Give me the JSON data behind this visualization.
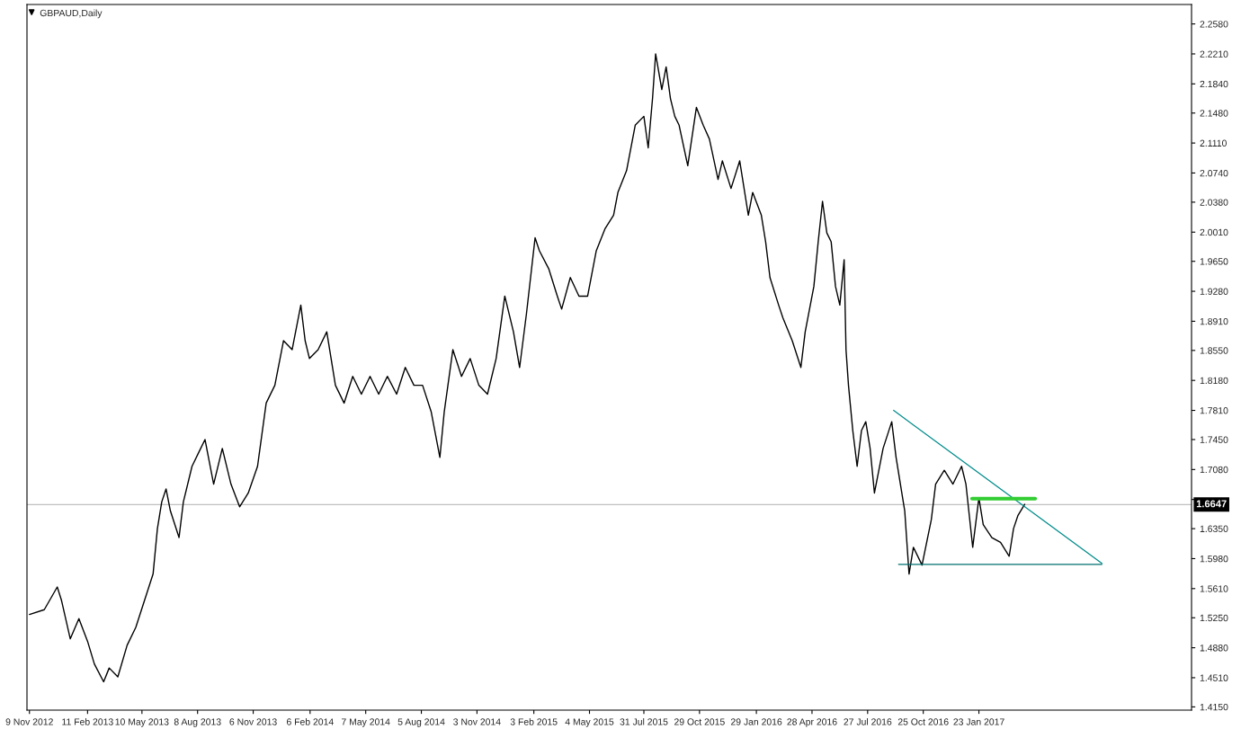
{
  "chart_data": {
    "type": "line",
    "title": "GBPAUD,Daily",
    "xlim": [
      "2012-11-05",
      "2018-01-02"
    ],
    "xticks": [
      {
        "value": "2012-11-09",
        "label": "9 Nov 2012"
      },
      {
        "value": "2013-02-11",
        "label": "11 Feb 2013"
      },
      {
        "value": "2013-05-10",
        "label": "10 May 2013"
      },
      {
        "value": "2013-08-08",
        "label": "8 Aug 2013"
      },
      {
        "value": "2013-11-06",
        "label": "6 Nov 2013"
      },
      {
        "value": "2014-02-06",
        "label": "6 Feb 2014"
      },
      {
        "value": "2014-05-07",
        "label": "7 May 2014"
      },
      {
        "value": "2014-08-05",
        "label": "5 Aug 2014"
      },
      {
        "value": "2014-11-03",
        "label": "3 Nov 2014"
      },
      {
        "value": "2015-02-03",
        "label": "3 Feb 2015"
      },
      {
        "value": "2015-05-04",
        "label": "4 May 2015"
      },
      {
        "value": "2015-07-31",
        "label": "31 Jul 2015"
      },
      {
        "value": "2015-10-29",
        "label": "29 Oct 2015"
      },
      {
        "value": "2016-01-29",
        "label": "29 Jan 2016"
      },
      {
        "value": "2016-04-28",
        "label": "28 Apr 2016"
      },
      {
        "value": "2016-07-27",
        "label": "27 Jul 2016"
      },
      {
        "value": "2016-10-25",
        "label": "25 Oct 2016"
      },
      {
        "value": "2017-01-23",
        "label": "23 Jan 2017"
      }
    ],
    "ylim": [
      1.411,
      2.282
    ],
    "yticks": [
      {
        "value": 1.415,
        "label": "1.4150"
      },
      {
        "value": 1.451,
        "label": "1.4510"
      },
      {
        "value": 1.488,
        "label": "1.4880"
      },
      {
        "value": 1.525,
        "label": "1.5250"
      },
      {
        "value": 1.561,
        "label": "1.5610"
      },
      {
        "value": 1.598,
        "label": "1.5980"
      },
      {
        "value": 1.635,
        "label": "1.6350"
      },
      {
        "value": 1.671,
        "label": null
      },
      {
        "value": 1.708,
        "label": "1.7080"
      },
      {
        "value": 1.745,
        "label": "1.7450"
      },
      {
        "value": 1.781,
        "label": "1.7810"
      },
      {
        "value": 1.818,
        "label": "1.8180"
      },
      {
        "value": 1.855,
        "label": "1.8550"
      },
      {
        "value": 1.891,
        "label": "1.8910"
      },
      {
        "value": 1.928,
        "label": "1.9280"
      },
      {
        "value": 1.965,
        "label": "1.9650"
      },
      {
        "value": 2.001,
        "label": "2.0010"
      },
      {
        "value": 2.038,
        "label": "2.0380"
      },
      {
        "value": 2.074,
        "label": "2.0740"
      },
      {
        "value": 2.111,
        "label": "2.1110"
      },
      {
        "value": 2.148,
        "label": "2.1480"
      },
      {
        "value": 2.184,
        "label": "2.1840"
      },
      {
        "value": 2.221,
        "label": "2.2210"
      },
      {
        "value": 2.258,
        "label": "2.2580"
      }
    ],
    "grid": false,
    "marker": "none",
    "line_style": "solid",
    "ref_lines": [
      {
        "axis": "y",
        "value": 1.6647,
        "label": "1.6647",
        "color": "#c0c0c0"
      }
    ],
    "series": [
      {
        "color": "#000000",
        "x": [
          "2012-11-09",
          "2012-12-03",
          "2012-12-24",
          "2012-12-31",
          "2013-01-14",
          "2013-01-28",
          "2013-02-11",
          "2013-02-22",
          "2013-03-09",
          "2013-03-18",
          "2013-04-01",
          "2013-04-16",
          "2013-04-30",
          "2013-05-14",
          "2013-05-28",
          "2013-06-04",
          "2013-06-11",
          "2013-06-18",
          "2013-06-25",
          "2013-07-09",
          "2013-07-16",
          "2013-07-30",
          "2013-08-13",
          "2013-08-20",
          "2013-09-03",
          "2013-09-17",
          "2013-10-01",
          "2013-10-15",
          "2013-10-29",
          "2013-11-13",
          "2013-11-27",
          "2013-12-11",
          "2013-12-25",
          "2014-01-08",
          "2014-01-22",
          "2014-01-29",
          "2014-02-05",
          "2014-02-19",
          "2014-03-05",
          "2014-03-19",
          "2014-04-02",
          "2014-04-16",
          "2014-04-30",
          "2014-05-14",
          "2014-05-28",
          "2014-06-11",
          "2014-06-26",
          "2014-07-10",
          "2014-07-24",
          "2014-08-07",
          "2014-08-21",
          "2014-09-04",
          "2014-09-11",
          "2014-09-25",
          "2014-10-09",
          "2014-10-23",
          "2014-11-06",
          "2014-11-20",
          "2014-12-04",
          "2014-12-18",
          "2015-01-01",
          "2015-01-11",
          "2015-01-22",
          "2015-02-05",
          "2015-02-12",
          "2015-02-27",
          "2015-03-13",
          "2015-03-20",
          "2015-04-03",
          "2015-04-17",
          "2015-05-01",
          "2015-05-15",
          "2015-05-29",
          "2015-06-12",
          "2015-06-19",
          "2015-07-03",
          "2015-07-17",
          "2015-07-31",
          "2015-08-07",
          "2015-08-14",
          "2015-08-19",
          "2015-08-29",
          "2015-09-05",
          "2015-09-12",
          "2015-09-19",
          "2015-09-26",
          "2015-10-10",
          "2015-10-24",
          "2015-11-04",
          "2015-11-14",
          "2015-11-28",
          "2015-12-05",
          "2015-12-19",
          "2016-01-02",
          "2016-01-16",
          "2016-01-23",
          "2016-02-06",
          "2016-02-13",
          "2016-02-20",
          "2016-03-05",
          "2016-03-12",
          "2016-03-27",
          "2016-04-10",
          "2016-04-17",
          "2016-05-01",
          "2016-05-08",
          "2016-05-15",
          "2016-05-22",
          "2016-05-29",
          "2016-06-05",
          "2016-06-12",
          "2016-06-19",
          "2016-06-22",
          "2016-06-26",
          "2016-07-03",
          "2016-07-10",
          "2016-07-17",
          "2016-07-24",
          "2016-07-31",
          "2016-08-07",
          "2016-08-21",
          "2016-09-04",
          "2016-09-11",
          "2016-09-25",
          "2016-10-02",
          "2016-10-09",
          "2016-10-23",
          "2016-11-07",
          "2016-11-14",
          "2016-11-28",
          "2016-12-12",
          "2016-12-26",
          "2017-01-02",
          "2017-01-13",
          "2017-01-23",
          "2017-01-30",
          "2017-02-13",
          "2017-02-27",
          "2017-03-13",
          "2017-03-20",
          "2017-03-27",
          "2017-04-07"
        ],
        "values": [
          1.529,
          1.535,
          1.563,
          1.546,
          1.499,
          1.524,
          1.496,
          1.468,
          1.446,
          1.463,
          1.452,
          1.491,
          1.513,
          1.546,
          1.579,
          1.635,
          1.668,
          1.684,
          1.657,
          1.624,
          1.668,
          1.712,
          1.734,
          1.745,
          1.69,
          1.734,
          1.69,
          1.662,
          1.679,
          1.712,
          1.79,
          1.812,
          1.867,
          1.856,
          1.911,
          1.867,
          1.845,
          1.856,
          1.878,
          1.812,
          1.79,
          1.823,
          1.801,
          1.823,
          1.801,
          1.823,
          1.801,
          1.834,
          1.812,
          1.812,
          1.779,
          1.723,
          1.779,
          1.856,
          1.823,
          1.845,
          1.812,
          1.801,
          1.845,
          1.922,
          1.878,
          1.834,
          1.9,
          1.994,
          1.978,
          1.956,
          1.922,
          1.906,
          1.945,
          1.922,
          1.922,
          1.978,
          2.005,
          2.022,
          2.05,
          2.077,
          2.133,
          2.144,
          2.105,
          2.166,
          2.221,
          2.177,
          2.205,
          2.166,
          2.144,
          2.133,
          2.083,
          2.155,
          2.133,
          2.116,
          2.066,
          2.089,
          2.055,
          2.089,
          2.022,
          2.05,
          2.022,
          1.989,
          1.945,
          1.911,
          1.895,
          1.867,
          1.834,
          1.878,
          1.934,
          1.989,
          2.039,
          2.0,
          1.989,
          1.934,
          1.911,
          1.967,
          1.856,
          1.812,
          1.756,
          1.712,
          1.756,
          1.767,
          1.734,
          1.679,
          1.734,
          1.767,
          1.723,
          1.657,
          1.579,
          1.612,
          1.59,
          1.646,
          1.69,
          1.707,
          1.69,
          1.712,
          1.69,
          1.612,
          1.673,
          1.64,
          1.624,
          1.618,
          1.601,
          1.635,
          1.651,
          1.665
        ]
      },
      {
        "color": "#008b8b",
        "x": [
          "2016-09-07",
          "2017-08-10"
        ],
        "values": [
          1.781,
          1.592
        ]
      },
      {
        "color": "#007070",
        "x": [
          "2016-09-15",
          "2017-08-10"
        ],
        "values": [
          1.591,
          1.591
        ]
      },
      {
        "color": "#32cd32",
        "x": [
          "2017-01-12",
          "2017-04-24"
        ],
        "values": [
          1.672,
          1.672
        ]
      }
    ]
  }
}
